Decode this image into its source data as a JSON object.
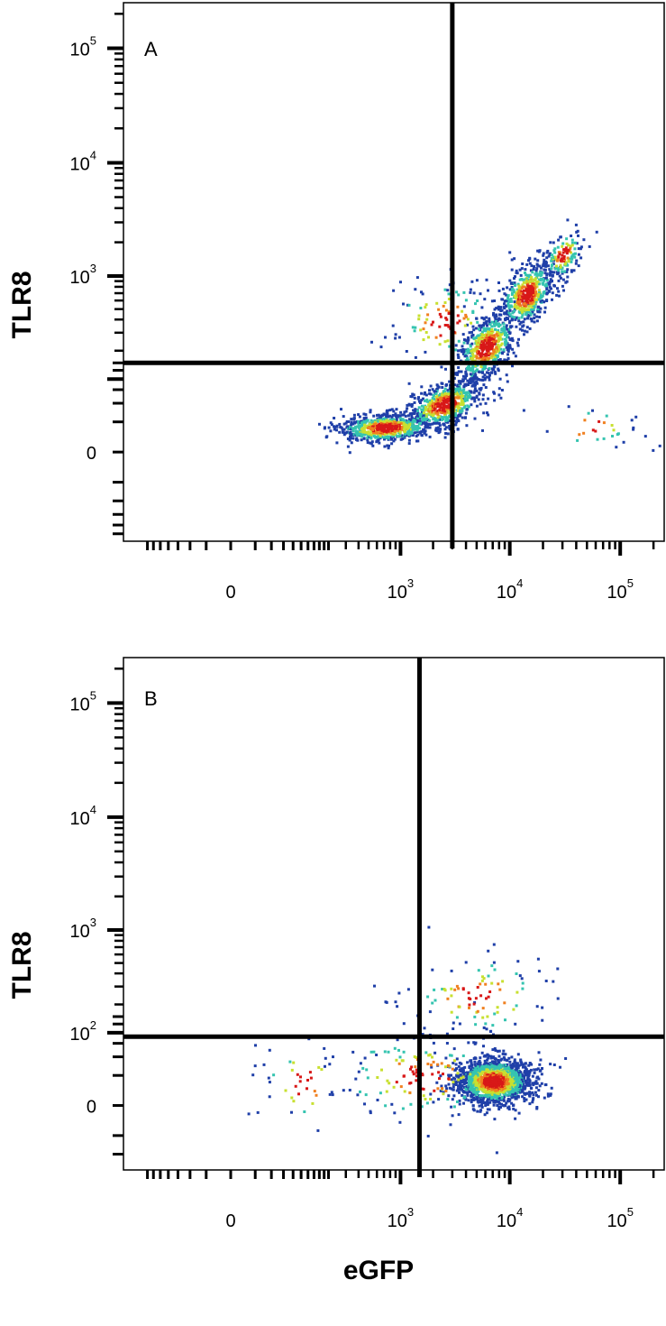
{
  "chart_data": [
    {
      "type": "scatter",
      "panel_label": "A",
      "xlabel": "",
      "ylabel": "TLR8",
      "x_scale": "biexponential",
      "y_scale": "biexponential",
      "x_ticks": [
        {
          "value": 0,
          "base": "0",
          "exp": ""
        },
        {
          "value": 1000,
          "base": "10",
          "exp": "3"
        },
        {
          "value": 10000,
          "base": "10",
          "exp": "4"
        },
        {
          "value": 100000,
          "base": "10",
          "exp": "5"
        }
      ],
      "y_ticks": [
        {
          "value": 0,
          "base": "0",
          "exp": ""
        },
        {
          "value": 1000,
          "base": "10",
          "exp": "3"
        },
        {
          "value": 10000,
          "base": "10",
          "exp": "4"
        },
        {
          "value": 100000,
          "base": "10",
          "exp": "5"
        }
      ],
      "quadrant_gate": {
        "x": 3000,
        "y": 150
      },
      "population": "diagonal rising from low eGFP/low TLR8 to high eGFP/high TLR8",
      "dense_regions": [
        {
          "x": 800,
          "y": 20,
          "density": "high"
        },
        {
          "x": 3000,
          "y": 60,
          "density": "high"
        },
        {
          "x": 8000,
          "y": 300,
          "density": "high"
        },
        {
          "x": 15000,
          "y": 700,
          "density": "high"
        }
      ],
      "colors": {
        "low": "#1f3fa8",
        "mid": "#35c4b0",
        "midhigh": "#c8e030",
        "high": "#f08020",
        "peak": "#d81818"
      }
    },
    {
      "type": "scatter",
      "panel_label": "B",
      "xlabel": "eGFP",
      "ylabel": "TLR8",
      "x_scale": "biexponential",
      "y_scale": "biexponential",
      "x_ticks": [
        {
          "value": 0,
          "base": "0",
          "exp": ""
        },
        {
          "value": 1000,
          "base": "10",
          "exp": "3"
        },
        {
          "value": 10000,
          "base": "10",
          "exp": "4"
        },
        {
          "value": 100000,
          "base": "10",
          "exp": "5"
        }
      ],
      "y_ticks": [
        {
          "value": 0,
          "base": "0",
          "exp": ""
        },
        {
          "value": 100,
          "base": "10",
          "exp": "2"
        },
        {
          "value": 1000,
          "base": "10",
          "exp": "3"
        },
        {
          "value": 10000,
          "base": "10",
          "exp": "4"
        },
        {
          "value": 100000,
          "base": "10",
          "exp": "5"
        }
      ],
      "quadrant_gate": {
        "x": 1500,
        "y": 90
      },
      "population": "eGFP-positive cells with low TLR8 (lower-right quadrant)",
      "dense_regions": [
        {
          "x": 7000,
          "y": 20,
          "density": "high"
        }
      ],
      "colors": {
        "low": "#1f3fa8",
        "mid": "#35c4b0",
        "midhigh": "#c8e030",
        "high": "#f08020",
        "peak": "#d81818"
      }
    }
  ]
}
